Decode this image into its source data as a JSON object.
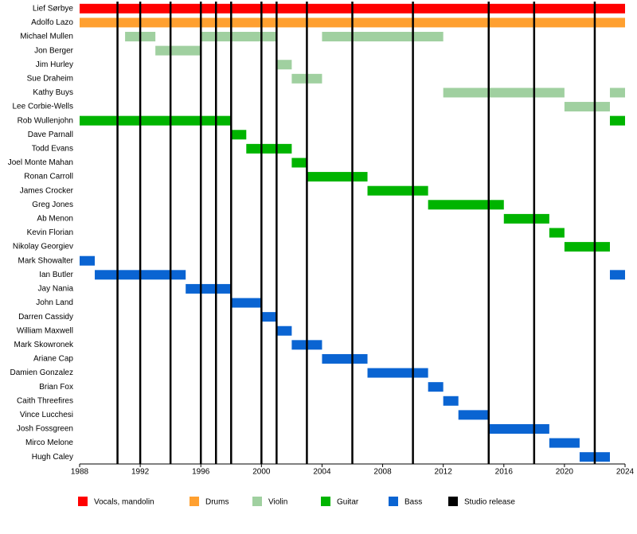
{
  "chart_data": {
    "type": "timeline",
    "categories": [
      "Lief Sørbye",
      "Adolfo Lazo",
      "Michael Mullen",
      "Jon Berger",
      "Jim Hurley",
      "Sue Draheim",
      "Kathy Buys",
      "Lee Corbie-Wells",
      "Rob Wullenjohn",
      "Dave Parnall",
      "Todd Evans",
      "Joel Monte Mahan",
      "Ronan Carroll",
      "James Crocker",
      "Greg Jones",
      "Ab Menon",
      "Kevin Florian",
      "Nikolay Georgiev",
      "Mark Showalter",
      "Ian Butler",
      "Jay Nania",
      "John Land",
      "Darren Cassidy",
      "William Maxwell",
      "Mark Skowronek",
      "Ariane Cap",
      "Damien Gonzalez",
      "Brian Fox",
      "Caith Threefires",
      "Vince Lucchesi",
      "Josh Fossgreen",
      "Mirco Melone",
      "Hugh Caley"
    ],
    "series": [
      {
        "name": "Vocals, mandolin",
        "color": "#ff0000",
        "values": [
          [
            [
              1988,
              2024
            ]
          ],
          null,
          null,
          null,
          null,
          null,
          null,
          null,
          null,
          null,
          null,
          null,
          null,
          null,
          null,
          null,
          null,
          null,
          null,
          null,
          null,
          null,
          null,
          null,
          null,
          null,
          null,
          null,
          null,
          null,
          null,
          null,
          null
        ]
      },
      {
        "name": "Drums",
        "color": "#ffa030",
        "values": [
          null,
          [
            [
              1988,
              2024
            ]
          ],
          null,
          null,
          null,
          null,
          null,
          null,
          null,
          null,
          null,
          null,
          null,
          null,
          null,
          null,
          null,
          null,
          null,
          null,
          null,
          null,
          null,
          null,
          null,
          null,
          null,
          null,
          null,
          null,
          null,
          null,
          null
        ]
      },
      {
        "name": "Violin",
        "color": "#a0d0a0",
        "values": [
          null,
          null,
          [
            [
              1991,
              1993
            ],
            [
              1996,
              2001
            ],
            [
              2004,
              2012
            ]
          ],
          [
            [
              1993,
              1996
            ]
          ],
          [
            [
              2001,
              2002
            ]
          ],
          [
            [
              2002,
              2004
            ]
          ],
          [
            [
              2012,
              2020
            ],
            [
              2023,
              2024
            ]
          ],
          [
            [
              2020,
              2023
            ]
          ],
          null,
          null,
          null,
          null,
          null,
          null,
          null,
          null,
          null,
          null,
          null,
          null,
          null,
          null,
          null,
          null,
          null,
          null,
          null,
          null,
          null,
          null,
          null,
          null,
          null
        ]
      },
      {
        "name": "Guitar",
        "color": "#00b400",
        "values": [
          null,
          null,
          null,
          null,
          null,
          null,
          null,
          null,
          [
            [
              1988,
              1998
            ],
            [
              2023,
              2024
            ]
          ],
          [
            [
              1998,
              1999
            ]
          ],
          [
            [
              1999,
              2002
            ]
          ],
          [
            [
              2002,
              2003
            ]
          ],
          [
            [
              2003,
              2007
            ]
          ],
          [
            [
              2007,
              2011
            ]
          ],
          [
            [
              2011,
              2016
            ]
          ],
          [
            [
              2016,
              2019
            ]
          ],
          [
            [
              2019,
              2020
            ]
          ],
          [
            [
              2020,
              2023
            ]
          ],
          null,
          null,
          null,
          null,
          null,
          null,
          null,
          null,
          null,
          null,
          null,
          null,
          null,
          null,
          null
        ]
      },
      {
        "name": "Bass",
        "color": "#0a64d2",
        "values": [
          null,
          null,
          null,
          null,
          null,
          null,
          null,
          null,
          null,
          null,
          null,
          null,
          null,
          null,
          null,
          null,
          null,
          null,
          [
            [
              1988,
              1989
            ]
          ],
          [
            [
              1989,
              1995
            ],
            [
              2023,
              2024
            ]
          ],
          [
            [
              1995,
              1998
            ]
          ],
          [
            [
              1998,
              2000
            ]
          ],
          [
            [
              2000,
              2001
            ]
          ],
          [
            [
              2001,
              2002
            ]
          ],
          [
            [
              2002,
              2004
            ]
          ],
          [
            [
              2004,
              2007
            ]
          ],
          [
            [
              2007,
              2011
            ]
          ],
          [
            [
              2011,
              2012
            ]
          ],
          [
            [
              2012,
              2013
            ]
          ],
          [
            [
              2013,
              2015
            ]
          ],
          [
            [
              2015,
              2019
            ]
          ],
          [
            [
              2019,
              2021
            ]
          ],
          [
            [
              2021,
              2023
            ]
          ]
        ]
      }
    ],
    "releases": {
      "name": "Studio release",
      "color": "#000000",
      "values": [
        1990.5,
        1992,
        1994,
        1996,
        1997,
        1998,
        2000,
        2001,
        2003,
        2006,
        2010,
        2015,
        2018,
        2022
      ]
    },
    "xlim": [
      1988,
      2024
    ],
    "xticks": [
      1988,
      1992,
      1996,
      2000,
      2004,
      2008,
      2012,
      2016,
      2020,
      2024
    ]
  }
}
